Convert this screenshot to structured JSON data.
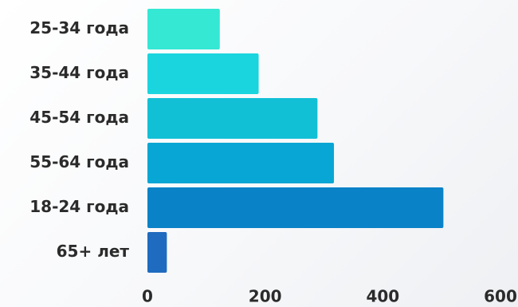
{
  "chart_data": {
    "type": "bar",
    "orientation": "horizontal",
    "categories": [
      "25-34 года",
      "35-44 года",
      "45-54 года",
      "55-64 года",
      "18-24 года",
      "65+ лет"
    ],
    "values": [
      123,
      189,
      289,
      317,
      503,
      33
    ],
    "bar_colors": [
      "#34e8d4",
      "#1ad5de",
      "#12c0d6",
      "#08a6d4",
      "#0a82c8",
      "#1f6bbf"
    ],
    "x_ticks": [
      0,
      200,
      400,
      600
    ],
    "xlim": [
      0,
      600
    ],
    "title": "",
    "xlabel": "",
    "ylabel": "",
    "grid": false,
    "legend": "none"
  }
}
